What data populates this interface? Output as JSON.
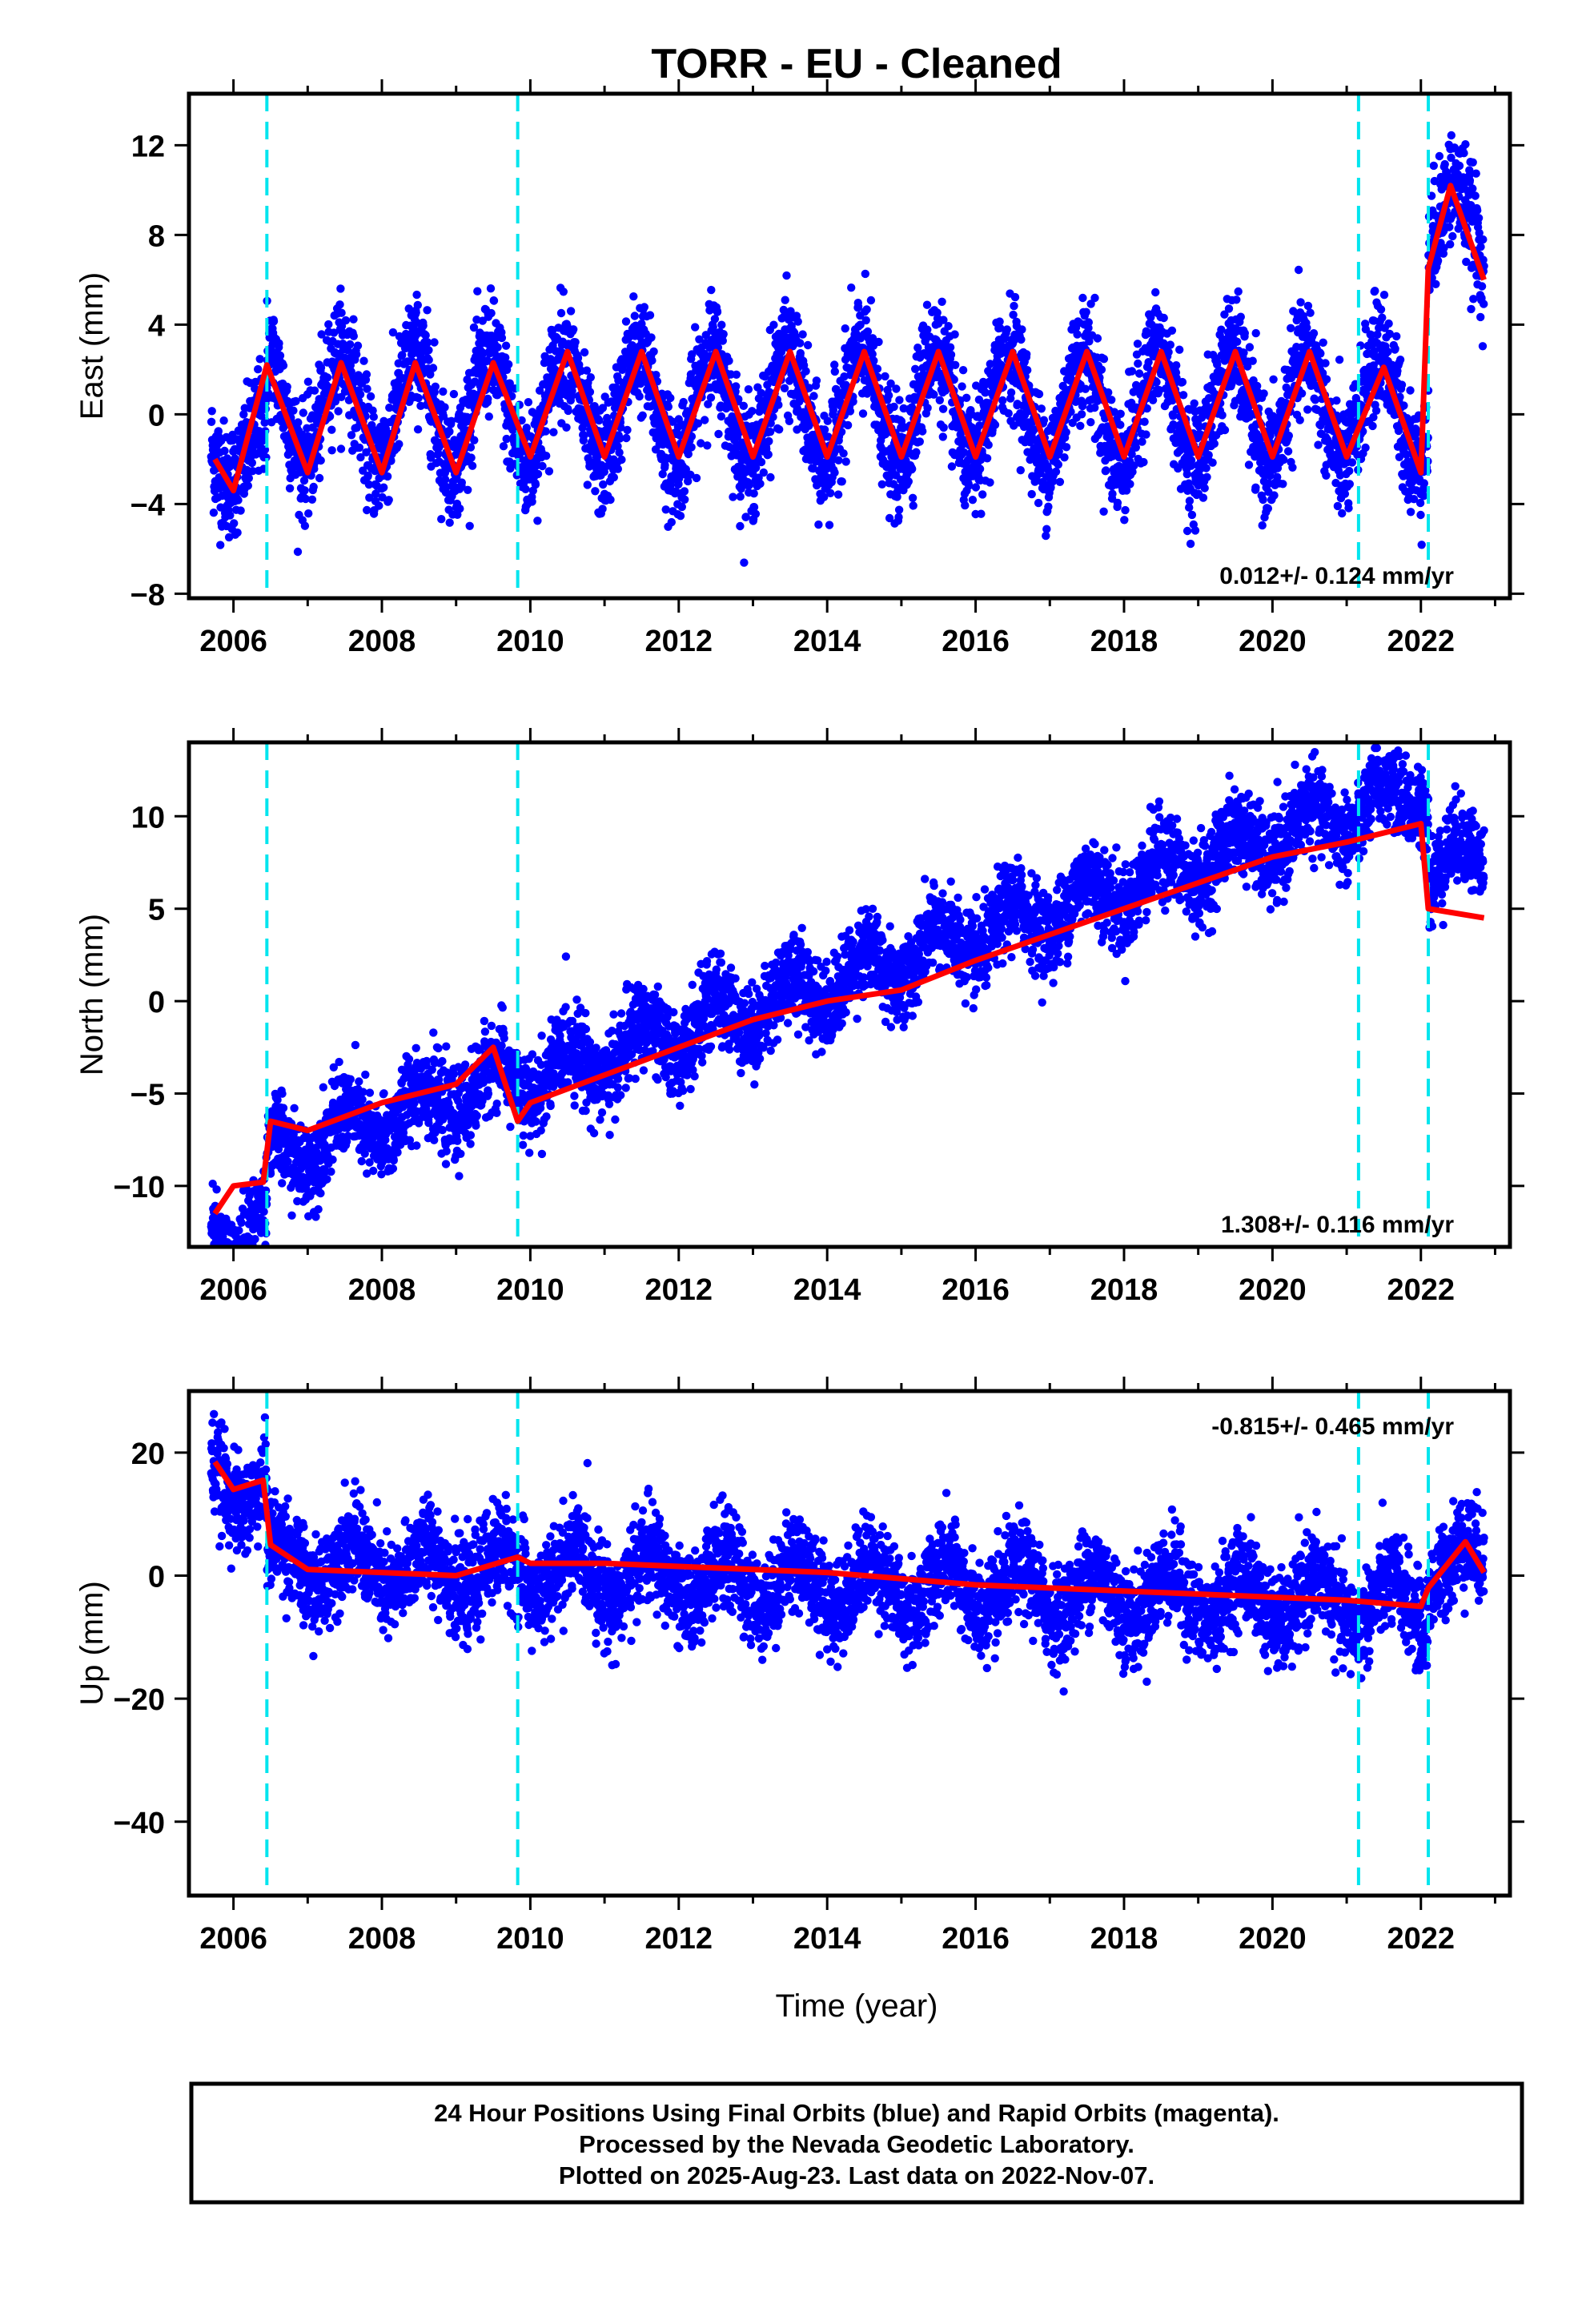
{
  "title": "TORR  - EU - Cleaned",
  "xlabel": "Time (year)",
  "footer": {
    "lines": [
      "24 Hour Positions Using Final Orbits (blue) and Rapid Orbits (magenta).",
      "Processed by the Nevada Geodetic Laboratory.",
      "Plotted on 2025-Aug-23. Last data on 2022-Nov-07."
    ]
  },
  "colors": {
    "points": "#0000ff",
    "fit": "#ff0000",
    "breaks": "#00e5ee",
    "frame": "#000000"
  },
  "chart_data": [
    {
      "type": "scatter",
      "name": "East",
      "ylabel": "East (mm)",
      "rate_text": "0.012+/- 0.124 mm/yr",
      "xlim": [
        2005.4,
        2023.2
      ],
      "ylim": [
        -8.2,
        14.3
      ],
      "x_ticks": [
        2006,
        2008,
        2010,
        2012,
        2014,
        2016,
        2018,
        2020,
        2022
      ],
      "y_ticks": [
        -8,
        -4,
        0,
        4,
        8,
        12
      ],
      "y_ticks_labeled": [
        -8,
        -4,
        0,
        4,
        8,
        12
      ],
      "breaks": [
        2006.45,
        2009.83,
        2021.16,
        2022.1
      ],
      "data_start": 2005.7,
      "data_end": 2022.85,
      "series": [
        {
          "name": "",
          "x": [
            2005.75,
            2006.0,
            2006.45,
            2007.0,
            2007.45,
            2008.0,
            2008.45,
            2009.0,
            2009.5,
            2010.0,
            2010.5,
            2011.0,
            2011.5,
            2012.0,
            2012.5,
            2013.0,
            2013.5,
            2014.0,
            2014.5,
            2015.0,
            2015.5,
            2016.0,
            2016.5,
            2017.0,
            2017.5,
            2018.0,
            2018.5,
            2019.0,
            2019.5,
            2020.0,
            2020.5,
            2021.0,
            2021.5,
            2022.0,
            2022.1,
            2022.4,
            2022.85
          ],
          "y": [
            -2.0,
            -3.4,
            2.2,
            -2.6,
            2.3,
            -2.6,
            2.3,
            -2.6,
            2.3,
            -1.9,
            2.8,
            -1.9,
            2.8,
            -1.9,
            2.8,
            -1.9,
            2.8,
            -1.9,
            2.8,
            -1.9,
            2.8,
            -1.9,
            2.8,
            -1.9,
            2.8,
            -1.9,
            2.8,
            -1.9,
            2.8,
            -1.9,
            2.8,
            -1.9,
            2.1,
            -2.6,
            6.5,
            10.2,
            6.0
          ]
        }
      ]
    },
    {
      "type": "scatter",
      "name": "North",
      "ylabel": "North (mm)",
      "rate_text": "1.308+/- 0.116 mm/yr",
      "xlim": [
        2005.4,
        2023.2
      ],
      "ylim": [
        -13.3,
        14.0
      ],
      "x_ticks": [
        2006,
        2008,
        2010,
        2012,
        2014,
        2016,
        2018,
        2020,
        2022
      ],
      "y_ticks": [
        -10,
        -5,
        0,
        5,
        10
      ],
      "y_ticks_labeled": [
        -10,
        -5,
        0,
        5,
        10
      ],
      "breaks": [
        2006.45,
        2009.83,
        2021.16,
        2022.1
      ],
      "data_start": 2005.7,
      "data_end": 2022.85,
      "series": [
        {
          "name": "",
          "x": [
            2005.75,
            2006.0,
            2006.4,
            2006.5,
            2007.0,
            2008.0,
            2009.0,
            2009.5,
            2009.83,
            2010.0,
            2011.0,
            2012.0,
            2013.0,
            2014.0,
            2015.0,
            2016.0,
            2017.0,
            2018.0,
            2019.0,
            2020.0,
            2021.0,
            2022.0,
            2022.1,
            2022.85
          ],
          "y": [
            -11.5,
            -10.0,
            -9.8,
            -6.5,
            -7.0,
            -5.5,
            -4.5,
            -2.5,
            -6.5,
            -5.5,
            -4.0,
            -2.5,
            -1.0,
            0.0,
            0.6,
            2.2,
            3.6,
            5.0,
            6.4,
            7.8,
            8.6,
            9.6,
            5.0,
            4.5
          ]
        }
      ]
    },
    {
      "type": "scatter",
      "name": "Up",
      "ylabel": "Up (mm)",
      "rate_text": "-0.815+/- 0.465 mm/yr",
      "xlim": [
        2005.4,
        2023.2
      ],
      "ylim": [
        -52.0,
        30.0
      ],
      "x_ticks": [
        2006,
        2008,
        2010,
        2012,
        2014,
        2016,
        2018,
        2020,
        2022
      ],
      "y_ticks": [
        -40,
        -20,
        0,
        20
      ],
      "y_ticks_labeled": [
        -40,
        -20,
        0,
        20
      ],
      "breaks": [
        2006.45,
        2009.83,
        2021.16,
        2022.1
      ],
      "data_start": 2005.7,
      "data_end": 2022.85,
      "series": [
        {
          "name": "",
          "x": [
            2005.75,
            2006.0,
            2006.4,
            2006.5,
            2007.0,
            2008.0,
            2009.0,
            2009.83,
            2010.0,
            2011.0,
            2012.0,
            2013.0,
            2014.0,
            2015.0,
            2016.0,
            2017.0,
            2018.0,
            2019.0,
            2020.0,
            2021.0,
            2022.0,
            2022.1,
            2022.6,
            2022.85
          ],
          "y": [
            18.5,
            14.0,
            15.5,
            5.0,
            1.0,
            0.5,
            0.0,
            3.0,
            2.0,
            2.0,
            1.5,
            1.0,
            0.5,
            -0.5,
            -1.5,
            -2.0,
            -2.5,
            -3.0,
            -3.5,
            -4.0,
            -5.0,
            -2.0,
            5.5,
            0.5
          ]
        }
      ]
    }
  ]
}
